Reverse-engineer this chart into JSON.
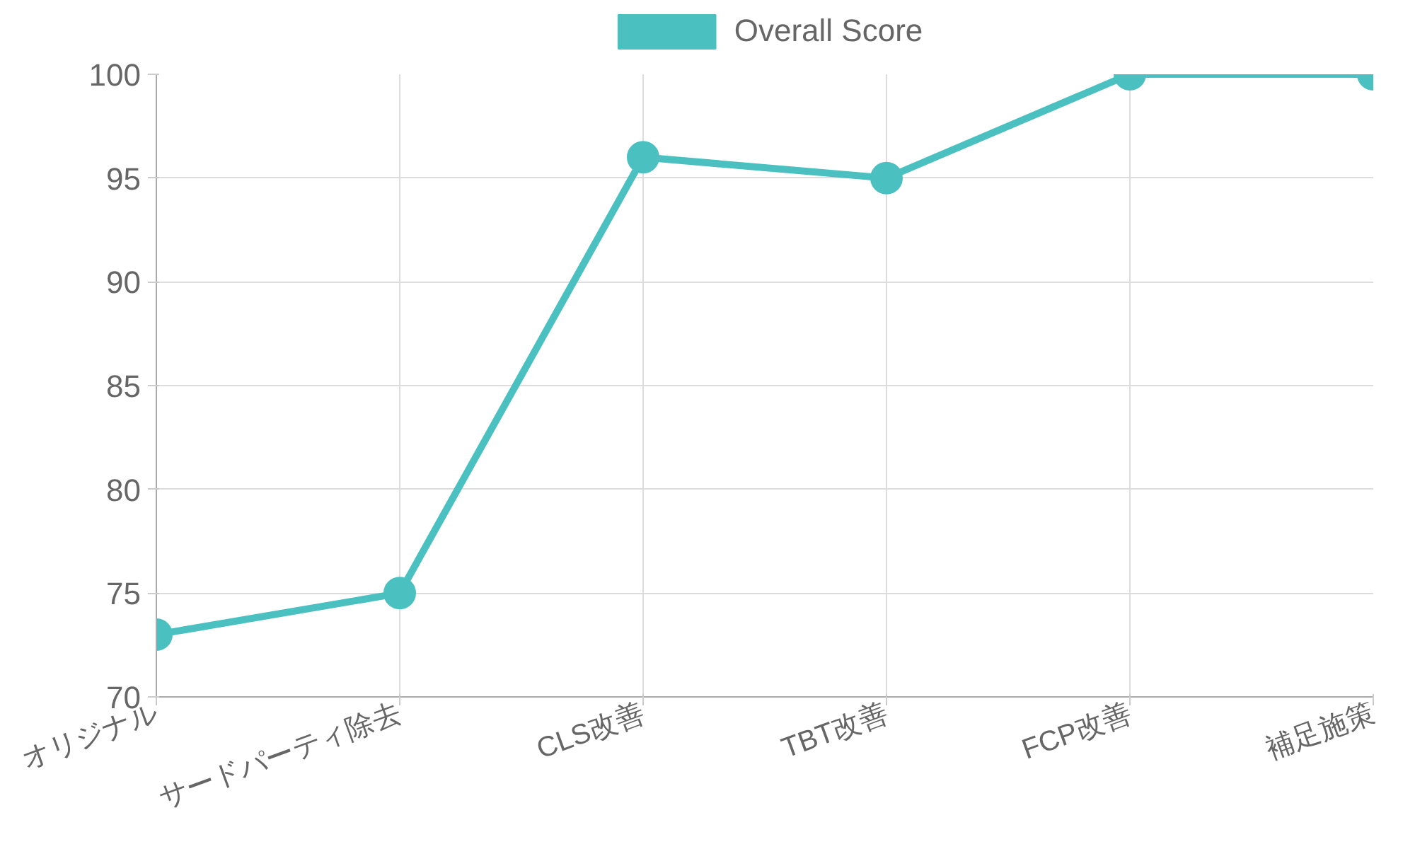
{
  "chart_data": {
    "type": "line",
    "categories": [
      "オリジナル",
      "サードパーティ除去",
      "CLS改善",
      "TBT改善",
      "FCP改善",
      "補足施策"
    ],
    "series": [
      {
        "name": "Overall Score",
        "color": "#4bc0c0",
        "values": [
          73,
          75,
          96,
          95,
          100,
          100
        ]
      }
    ],
    "ylim": [
      70,
      100
    ],
    "yticks": [
      70,
      75,
      80,
      85,
      90,
      95,
      100
    ],
    "grid": true,
    "legend": "top",
    "marker": "circle",
    "line_style": "solid"
  }
}
